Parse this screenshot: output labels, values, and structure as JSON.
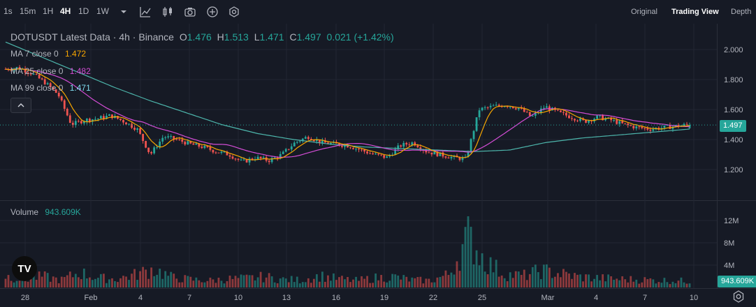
{
  "toolbar": {
    "timeframes": [
      "1s",
      "15m",
      "1H",
      "4H",
      "1D",
      "1W"
    ],
    "active_timeframe": "4H",
    "icons": [
      "chevron-down-icon",
      "line-chart-icon",
      "candles-icon",
      "camera-icon",
      "plus-circle-icon",
      "gear-icon"
    ],
    "views": [
      "Original",
      "Trading View",
      "Depth"
    ],
    "active_view": "Trading View"
  },
  "legend": {
    "title": "DOTUSDT Latest Data · 4h · Binance",
    "ohlc": [
      {
        "label": "O",
        "value": "1.476"
      },
      {
        "label": "H",
        "value": "1.513"
      },
      {
        "label": "L",
        "value": "1.471"
      },
      {
        "label": "C",
        "value": "1.497"
      }
    ],
    "change": "0.021 (+1.42%)",
    "ma7": {
      "label": "MA 7 close 0",
      "value": "1.472",
      "color": "#f7a600"
    },
    "ma25": {
      "label": "MA 25 close 0",
      "value": "1.482",
      "color": "#d44dd6"
    },
    "ma99": {
      "label": "MA 99 close 0",
      "value": "1.471",
      "color": "#7fdcf0"
    },
    "volume_label": "Volume",
    "volume_value": "943.609K"
  },
  "price_tag": "1.497",
  "volume_tag": "943.609K",
  "logo_text": "TV",
  "colors": {
    "up": "#26a69a",
    "down": "#ef5350",
    "ma99": "#4db6ac"
  },
  "chart_data": {
    "type": "candlestick",
    "symbol": "DOTUSDT",
    "interval": "4h",
    "price_ylim": [
      1.1,
      2.1
    ],
    "price_ticks": [
      "2.000",
      "1.800",
      "1.600",
      "1.400",
      "1.200"
    ],
    "volume_ticks": [
      "12M",
      "8M",
      "4M"
    ],
    "x_ticks": [
      "28",
      "Feb",
      "4",
      "7",
      "10",
      "13",
      "16",
      "19",
      "22",
      "25",
      "Mar",
      "4",
      "7",
      "10"
    ],
    "ma99_anchors": [
      2.05,
      1.95,
      1.85,
      1.75,
      1.66,
      1.58,
      1.5,
      1.44,
      1.4,
      1.37,
      1.35,
      1.34,
      1.33,
      1.32,
      1.33,
      1.38,
      1.41,
      1.43,
      1.45,
      1.47
    ],
    "price_anchors": [
      1.87,
      1.88,
      1.84,
      1.78,
      1.7,
      1.5,
      1.53,
      1.54,
      1.56,
      1.52,
      1.47,
      1.3,
      1.42,
      1.4,
      1.37,
      1.35,
      1.32,
      1.3,
      1.25,
      1.28,
      1.26,
      1.3,
      1.38,
      1.42,
      1.38,
      1.37,
      1.36,
      1.33,
      1.3,
      1.28,
      1.36,
      1.38,
      1.32,
      1.3,
      1.28,
      1.27,
      1.6,
      1.62,
      1.63,
      1.61,
      1.55,
      1.62,
      1.58,
      1.55,
      1.52,
      1.55,
      1.53,
      1.5,
      1.48,
      1.47,
      1.48,
      1.49,
      1.5
    ],
    "volume_anchors": [
      2.2,
      1.5,
      2.1,
      1.4,
      2.8,
      1.8,
      1.6,
      2.4,
      3.5,
      1.9,
      1.5,
      1.3,
      1.6,
      1.7,
      2.0,
      1.5,
      1.4,
      2.2,
      1.6,
      1.3,
      1.8,
      2.0,
      1.4,
      1.3,
      2.5,
      9.5,
      4.8,
      2.5,
      2.2,
      3.2,
      2.6,
      2.0,
      1.8,
      1.6,
      1.5,
      1.4,
      1.3,
      1.2
    ]
  }
}
